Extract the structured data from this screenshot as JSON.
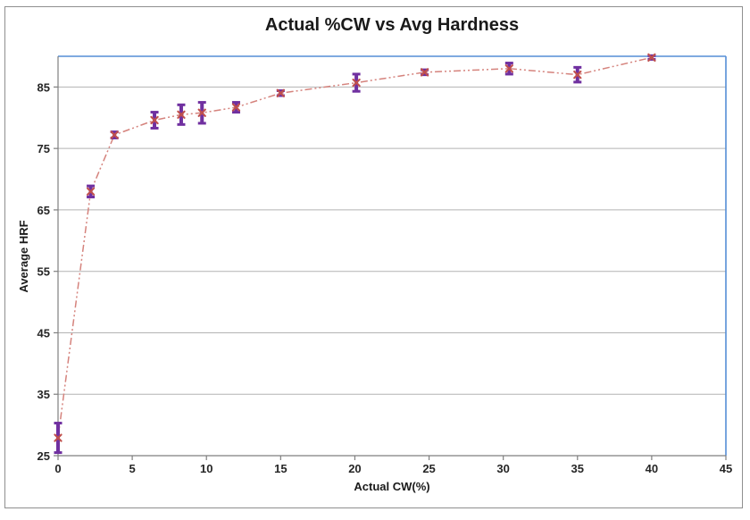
{
  "figure": {
    "title": "Actual %CW vs Avg Hardness",
    "x_axis_title": "Actual CW(%)",
    "y_axis_title": "Average HRF"
  },
  "chart_data": {
    "type": "scatter",
    "title": "Actual %CW vs Avg Hardness",
    "xlabel": "Actual CW(%)",
    "ylabel": "Average HRF",
    "xlim": [
      0,
      45
    ],
    "ylim": [
      25,
      90
    ],
    "x_ticks": [
      0,
      5,
      10,
      15,
      20,
      25,
      30,
      35,
      40,
      45
    ],
    "y_ticks": [
      25,
      35,
      45,
      55,
      65,
      75,
      85
    ],
    "grid": "horizontal-only",
    "legend": "none",
    "line_style": "dash-dot-dot",
    "marker_style": "x-cross-with-error-bars",
    "series": [
      {
        "name": "Avg Hardness",
        "points": [
          {
            "x": 0,
            "y": 27.9,
            "err": 2.4
          },
          {
            "x": 2.2,
            "y": 68.0,
            "err": 0.9
          },
          {
            "x": 3.8,
            "y": 77.2,
            "err": 0.5
          },
          {
            "x": 6.5,
            "y": 79.6,
            "err": 1.3
          },
          {
            "x": 8.3,
            "y": 80.5,
            "err": 1.6
          },
          {
            "x": 9.7,
            "y": 80.8,
            "err": 1.7
          },
          {
            "x": 12.0,
            "y": 81.7,
            "err": 0.8
          },
          {
            "x": 15.0,
            "y": 84.0,
            "err": 0.4
          },
          {
            "x": 20.1,
            "y": 85.7,
            "err": 1.4
          },
          {
            "x": 24.7,
            "y": 87.4,
            "err": 0.4
          },
          {
            "x": 30.4,
            "y": 88.0,
            "err": 0.9
          },
          {
            "x": 35.0,
            "y": 87.0,
            "err": 1.2
          },
          {
            "x": 40.0,
            "y": 89.8,
            "err": 0.3
          }
        ]
      }
    ],
    "colors": {
      "line": "#d5837d",
      "marker": "#c0504d",
      "error_bar": "#7030a0",
      "gridline": "#b3b3b3",
      "axis": "#7f7f7f",
      "plot_border_blue": "#558ed5",
      "figure_border": "#8f8f8f",
      "text": "#262626"
    }
  }
}
